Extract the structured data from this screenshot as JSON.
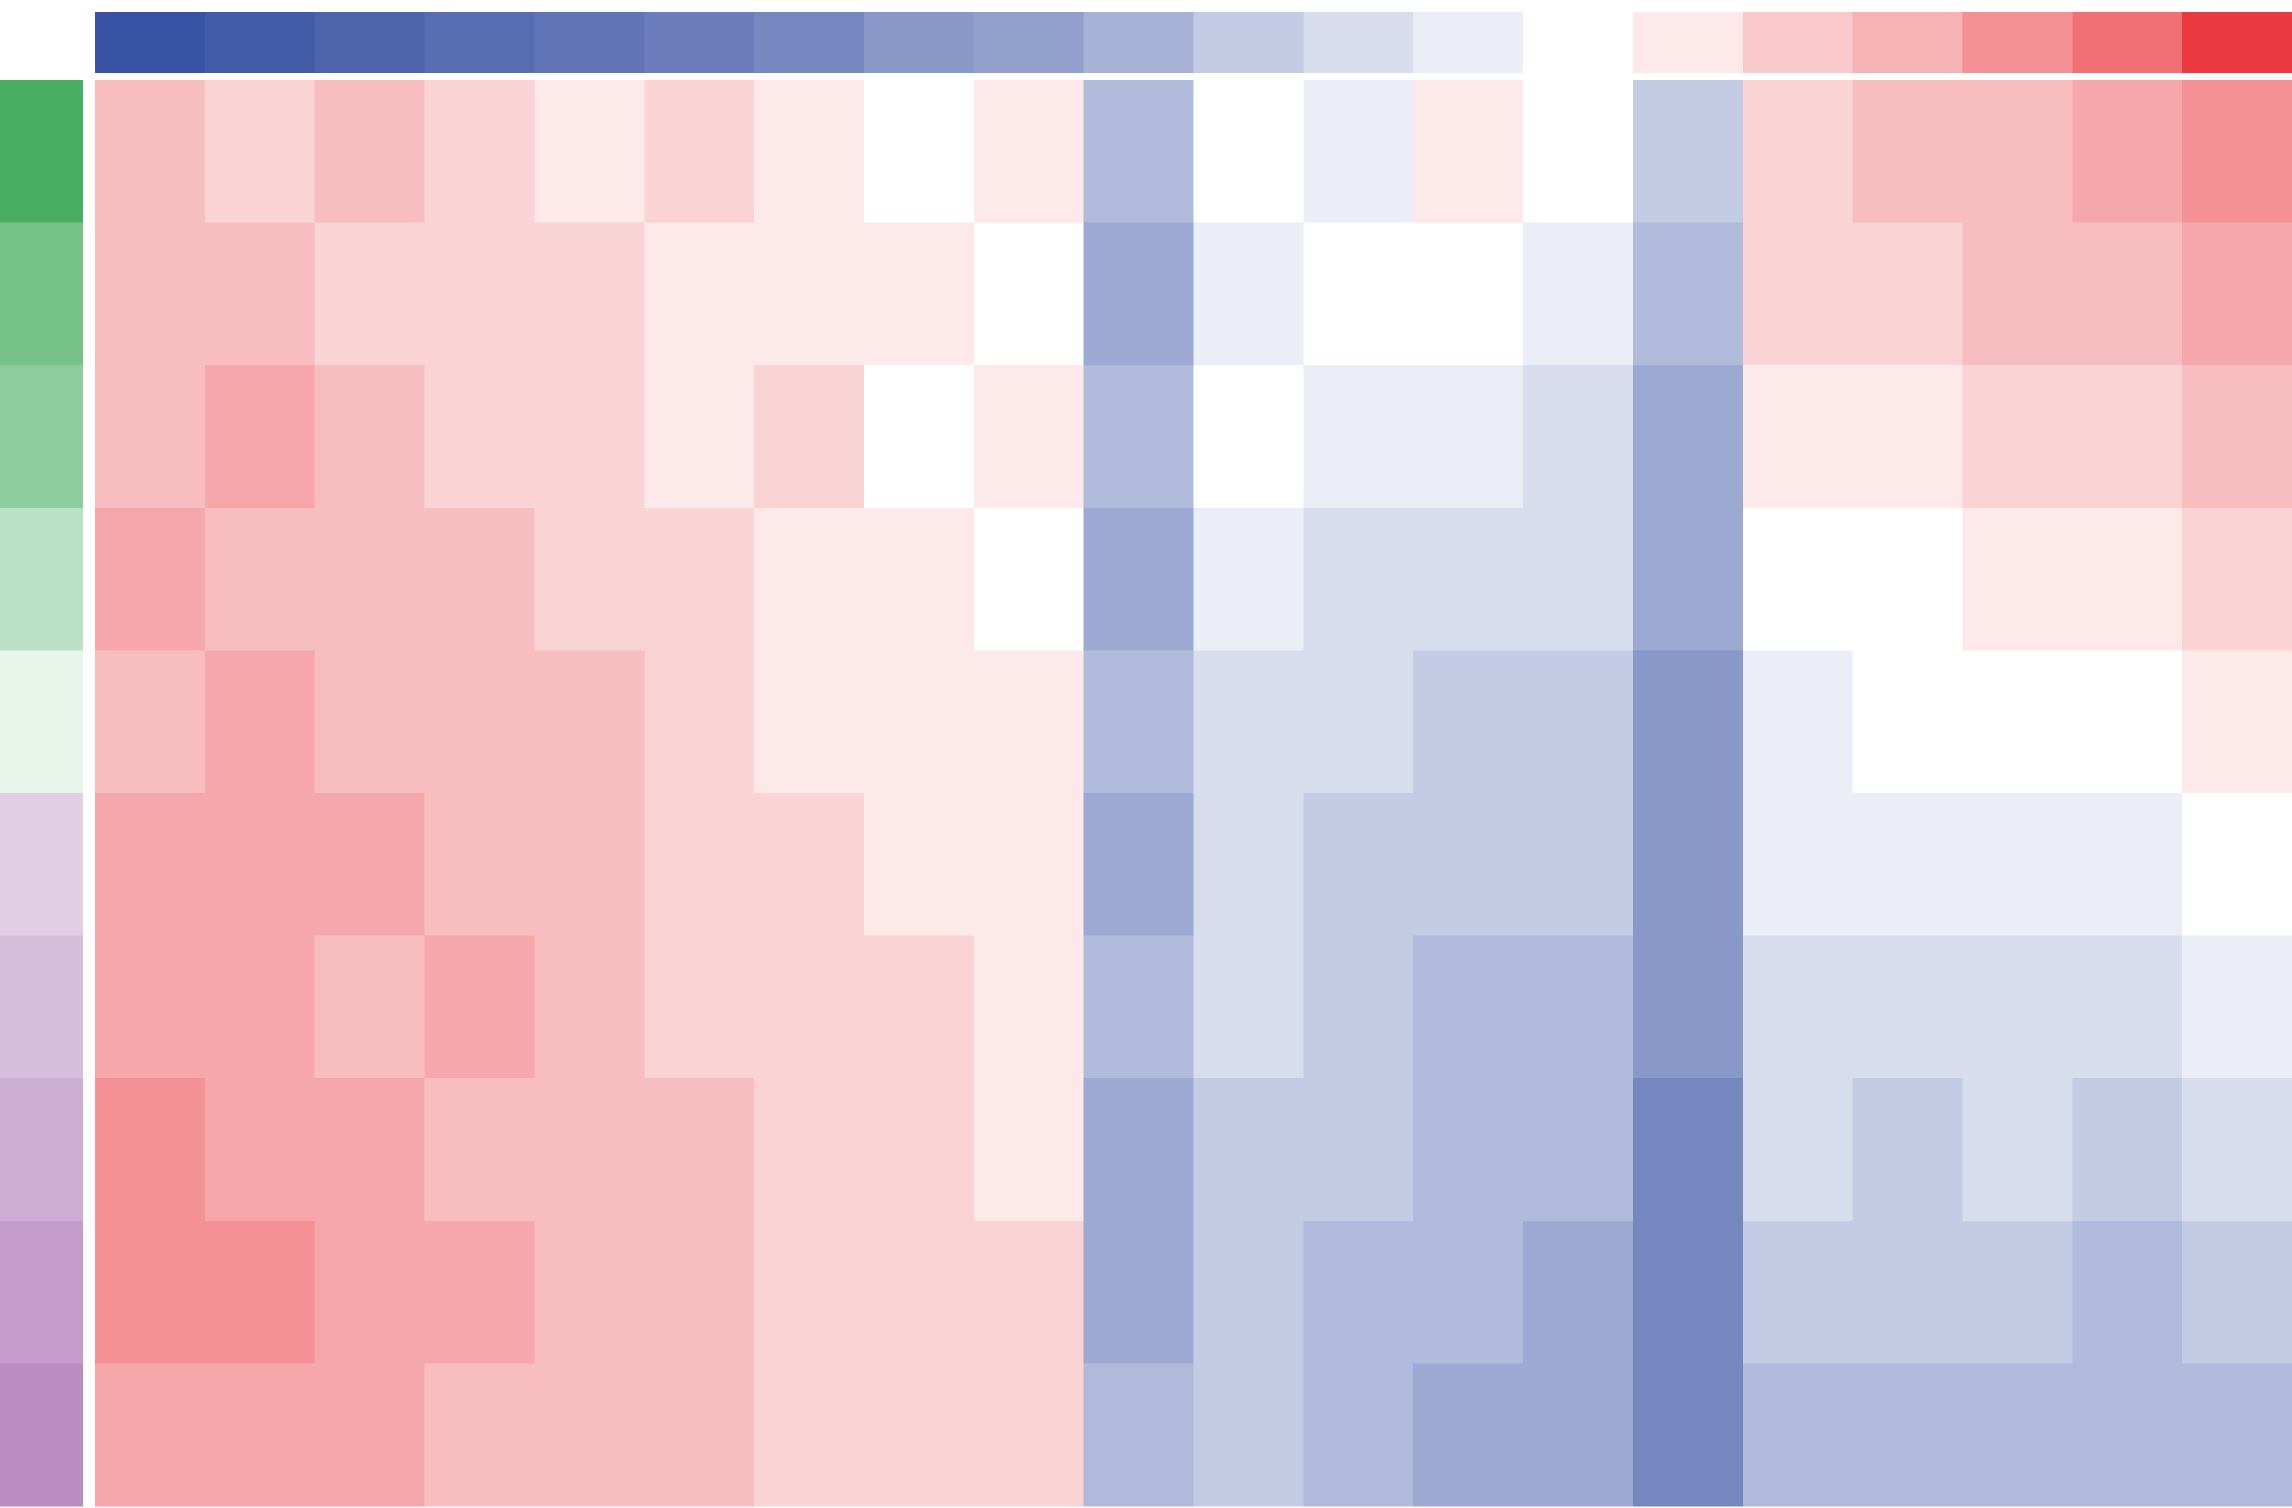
{
  "chart_data": {
    "type": "heatmap",
    "zlim": [
      -1,
      1
    ],
    "colors": {
      "low": "#3953a4",
      "mid": "#ffffff",
      "high": "#e8232a"
    },
    "row_colors": {
      "low": "#9c5aa8",
      "mid": "#ffffff",
      "high": "#1a9a3a"
    },
    "column_annotation": [
      -1,
      -0.95,
      -0.9,
      -0.85,
      -0.8,
      -0.75,
      -0.7,
      -0.6,
      -0.55,
      -0.45,
      -0.3,
      -0.2,
      -0.1,
      0,
      0.1,
      0.25,
      0.35,
      0.5,
      0.65,
      0.9
    ],
    "row_annotation": [
      0.8,
      0.6,
      0.5,
      0.3,
      0.1,
      -0.3,
      -0.4,
      -0.5,
      -0.6,
      -0.7
    ],
    "values": [
      [
        0.3,
        0.2,
        0.3,
        0.2,
        0.1,
        0.2,
        0.1,
        0.0,
        0.1,
        -0.4,
        0.0,
        -0.1,
        0.1,
        0.0,
        -0.3,
        0.2,
        0.3,
        0.3,
        0.4,
        0.5
      ],
      [
        0.3,
        0.3,
        0.2,
        0.2,
        0.2,
        0.1,
        0.1,
        0.1,
        0.0,
        -0.5,
        -0.1,
        0.0,
        0.0,
        -0.1,
        -0.4,
        0.2,
        0.2,
        0.3,
        0.3,
        0.4
      ],
      [
        0.3,
        0.4,
        0.3,
        0.2,
        0.2,
        0.1,
        0.2,
        0.0,
        0.1,
        -0.4,
        0.0,
        -0.1,
        -0.1,
        -0.2,
        -0.5,
        0.1,
        0.1,
        0.2,
        0.2,
        0.3
      ],
      [
        0.4,
        0.3,
        0.3,
        0.3,
        0.2,
        0.2,
        0.1,
        0.1,
        0.0,
        -0.5,
        -0.1,
        -0.2,
        -0.2,
        -0.2,
        -0.5,
        0.0,
        0.0,
        0.1,
        0.1,
        0.2
      ],
      [
        0.3,
        0.4,
        0.3,
        0.3,
        0.3,
        0.2,
        0.1,
        0.1,
        0.1,
        -0.4,
        -0.2,
        -0.2,
        -0.3,
        -0.3,
        -0.6,
        -0.1,
        0.0,
        0.0,
        0.0,
        0.1
      ],
      [
        0.4,
        0.4,
        0.4,
        0.3,
        0.3,
        0.2,
        0.2,
        0.1,
        0.1,
        -0.5,
        -0.2,
        -0.3,
        -0.3,
        -0.3,
        -0.6,
        -0.1,
        -0.1,
        -0.1,
        -0.1,
        0.0
      ],
      [
        0.4,
        0.4,
        0.3,
        0.4,
        0.3,
        0.2,
        0.2,
        0.2,
        0.1,
        -0.4,
        -0.2,
        -0.3,
        -0.4,
        -0.4,
        -0.6,
        -0.2,
        -0.2,
        -0.2,
        -0.2,
        -0.1
      ],
      [
        0.5,
        0.4,
        0.4,
        0.3,
        0.3,
        0.3,
        0.2,
        0.2,
        0.1,
        -0.5,
        -0.3,
        -0.3,
        -0.4,
        -0.4,
        -0.7,
        -0.2,
        -0.3,
        -0.2,
        -0.3,
        -0.2
      ],
      [
        0.5,
        0.5,
        0.4,
        0.4,
        0.3,
        0.3,
        0.2,
        0.2,
        0.2,
        -0.5,
        -0.3,
        -0.4,
        -0.4,
        -0.5,
        -0.7,
        -0.3,
        -0.3,
        -0.3,
        -0.4,
        -0.3
      ],
      [
        0.4,
        0.4,
        0.4,
        0.3,
        0.3,
        0.3,
        0.2,
        0.2,
        0.2,
        -0.4,
        -0.3,
        -0.4,
        -0.5,
        -0.5,
        -0.7,
        -0.4,
        -0.4,
        -0.4,
        -0.4,
        -0.4
      ]
    ]
  }
}
